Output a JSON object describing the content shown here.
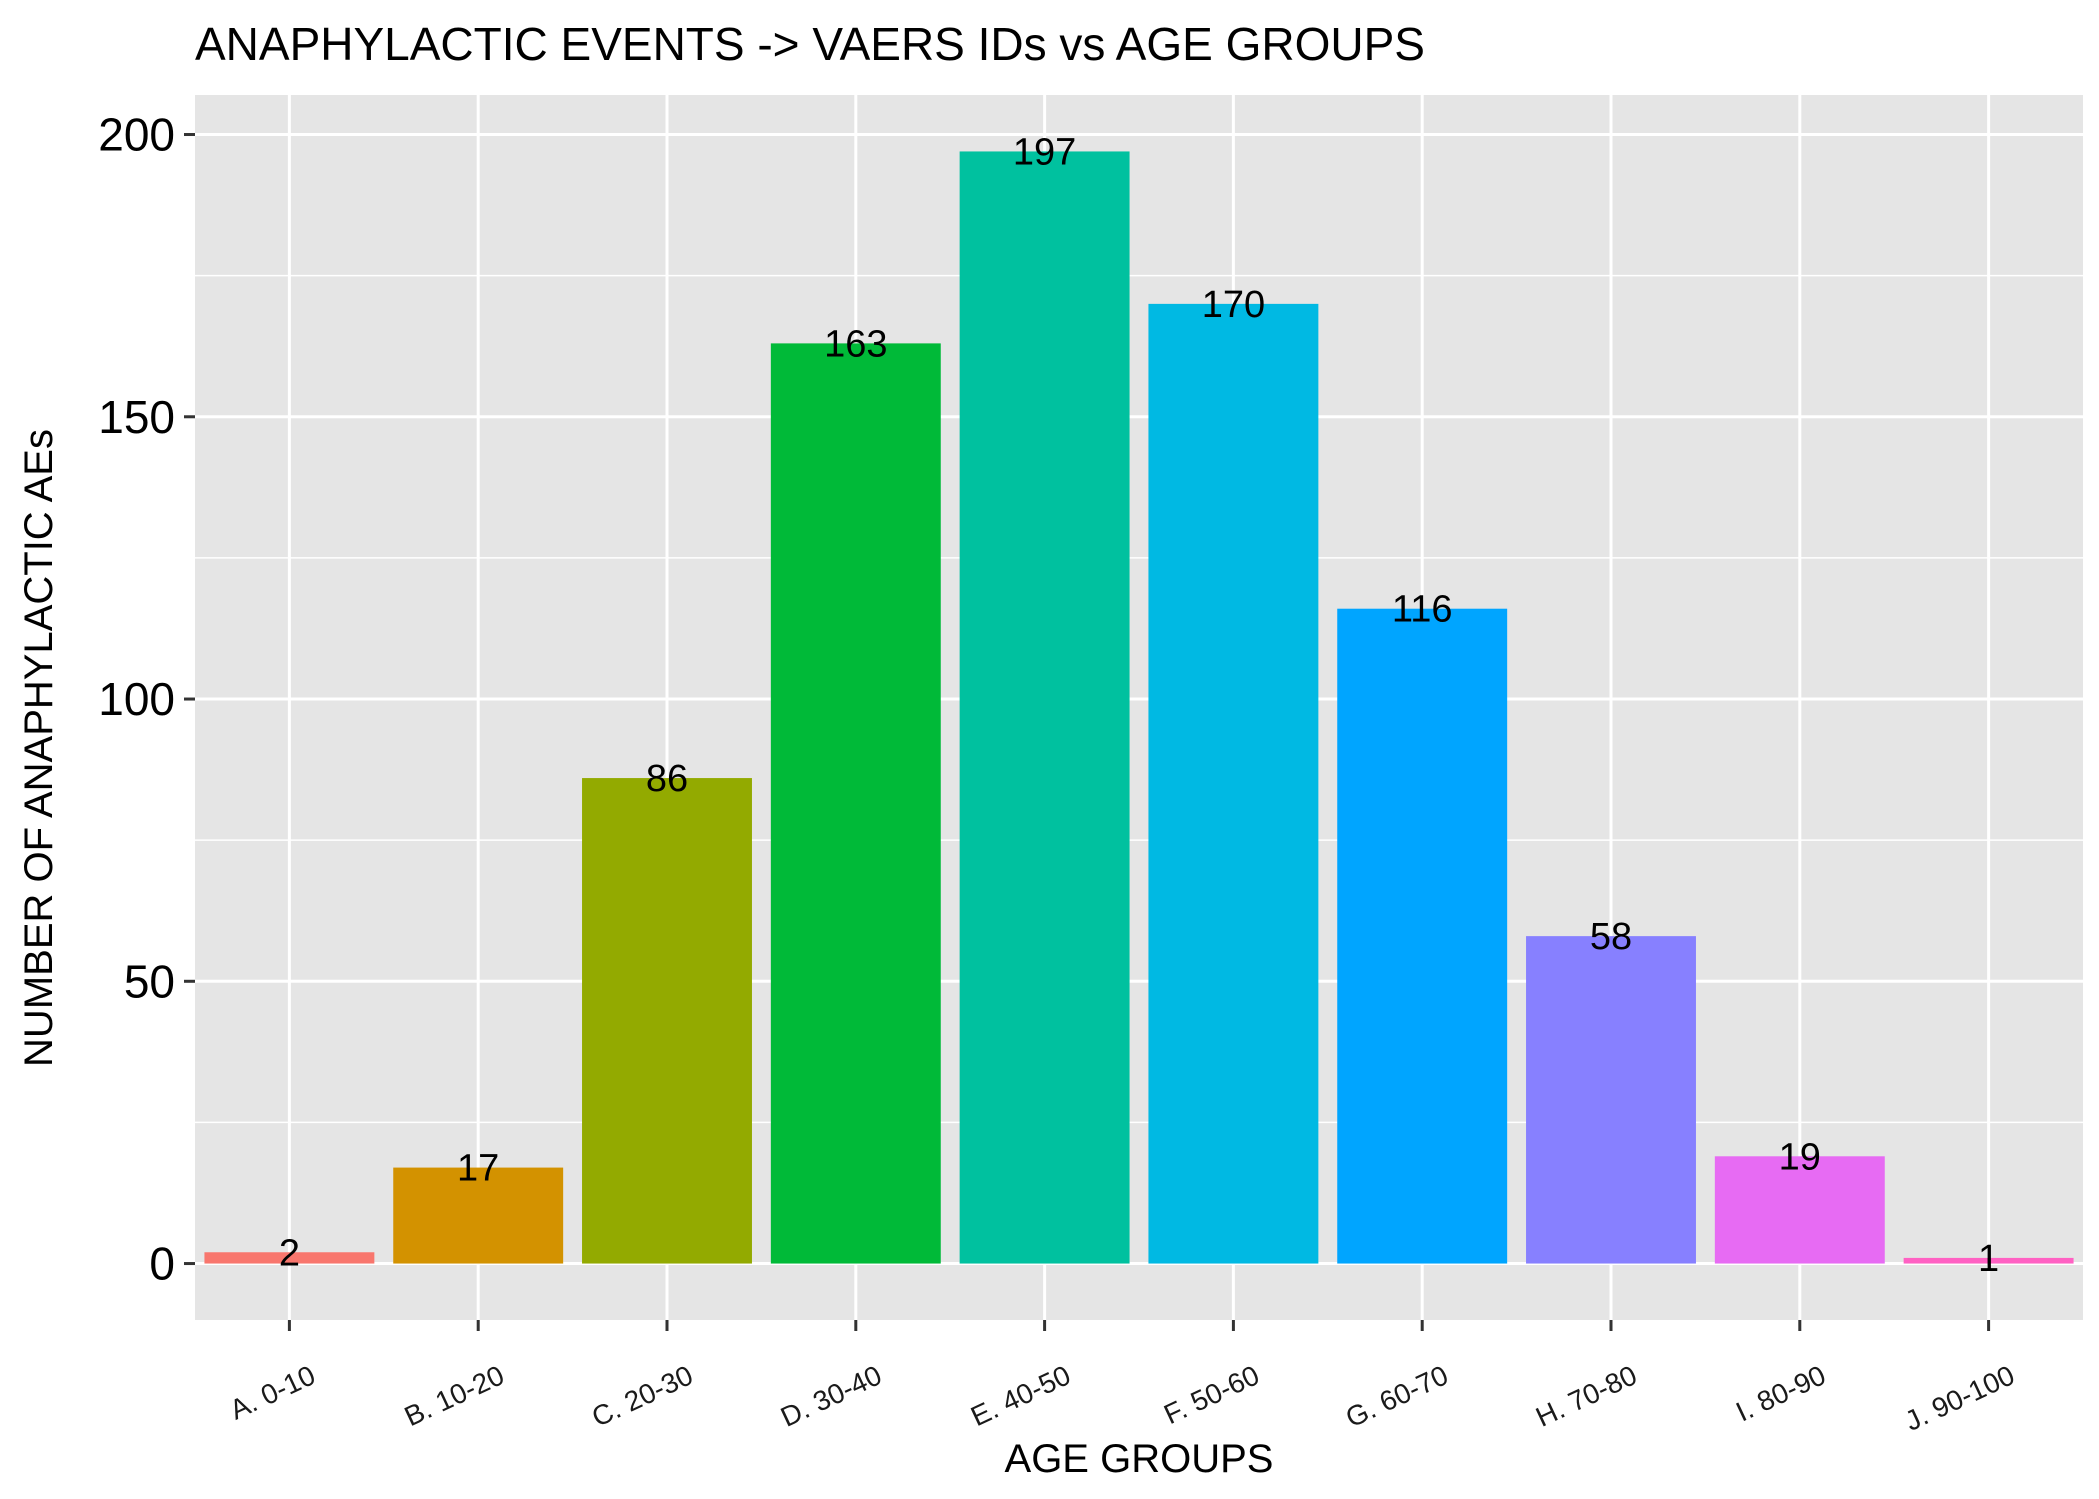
{
  "chart_data": {
    "type": "bar",
    "title": "ANAPHYLACTIC EVENTS -> VAERS IDs vs AGE GROUPS",
    "xlabel": "AGE GROUPS",
    "ylabel": "NUMBER OF ANAPHYLACTIC AEs",
    "categories": [
      "A. 0-10",
      "B. 10-20",
      "C. 20-30",
      "D. 30-40",
      "E. 40-50",
      "F. 50-60",
      "G. 60-70",
      "H. 70-80",
      "I. 80-90",
      "J. 90-100"
    ],
    "values": [
      2,
      17,
      86,
      163,
      197,
      170,
      116,
      58,
      19,
      1
    ],
    "data_labels": [
      "2",
      "17",
      "86",
      "163",
      "197",
      "170",
      "116",
      "58",
      "19",
      "1"
    ],
    "colors": [
      "#F8766D",
      "#D39200",
      "#93AA00",
      "#00BA38",
      "#00C19F",
      "#00B9E3",
      "#00A5FF",
      "#8780FF",
      "#E76BF3",
      "#FF61C3"
    ],
    "yticks": [
      0,
      50,
      100,
      150,
      200
    ],
    "ytick_labels": [
      "0",
      "50",
      "100",
      "150",
      "200"
    ],
    "ylim": [
      -10,
      207
    ],
    "grid": true,
    "legend": "none",
    "panel_background": "#E5E5E5",
    "gridline_color": "#FFFFFF"
  }
}
